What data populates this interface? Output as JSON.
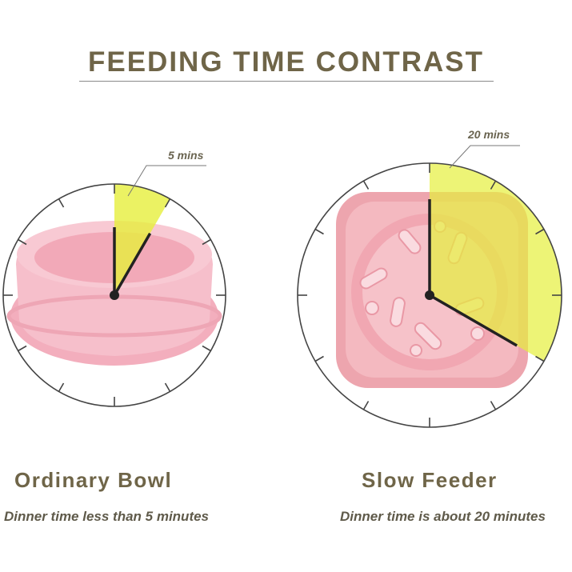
{
  "title": "FEEDING TIME CONTRAST",
  "colors": {
    "text": "#6f6548",
    "highlight": "#e6ef3c",
    "bowl_pink": "#f4b8c4",
    "clock": "#444444"
  },
  "left": {
    "name": "Ordinary Bowl",
    "description": "Dinner time less than 5 minutes",
    "time_label": "5 mins",
    "minutes": 5
  },
  "right": {
    "name": "Slow Feeder",
    "description": "Dinner time is about 20 minutes",
    "time_label": "20 mins",
    "minutes": 20
  }
}
